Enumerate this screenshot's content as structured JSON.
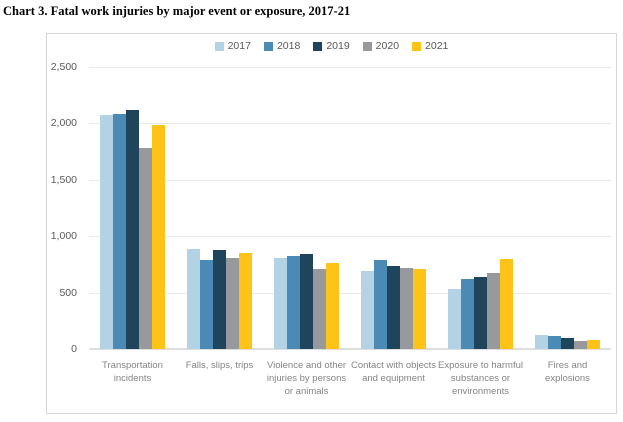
{
  "page_title": "Chart 3. Fatal work injuries by major event or exposure, 2017-21",
  "colors": {
    "s2017": "#b3d2e4",
    "s2018": "#4a8ab5",
    "s2019": "#1f455c",
    "s2020": "#98999c",
    "s2021": "#fdc317",
    "gridline": "#e9e9e9",
    "box_border": "#d6d6d6",
    "axis_text": "#595959",
    "category_text": "#848484"
  },
  "chart_data": {
    "type": "bar",
    "title": "Chart 3. Fatal work injuries by major event or exposure, 2017-21",
    "categories": [
      "Transportation incidents",
      "Falls, slips, trips",
      "Violence and other injuries by persons or animals",
      "Contact with objects and equipment",
      "Exposure to harmful substances or environments",
      "Fires and explosions"
    ],
    "series": [
      {
        "name": "2017",
        "color": "#b3d2e4",
        "values": [
          2077,
          887,
          807,
          695,
          531,
          123
        ]
      },
      {
        "name": "2018",
        "color": "#4a8ab5",
        "values": [
          2080,
          791,
          828,
          786,
          621,
          115
        ]
      },
      {
        "name": "2019",
        "color": "#1f455c",
        "values": [
          2122,
          880,
          841,
          732,
          642,
          99
        ]
      },
      {
        "name": "2020",
        "color": "#98999c",
        "values": [
          1778,
          805,
          705,
          716,
          672,
          72
        ]
      },
      {
        "name": "2021",
        "color": "#fdc317",
        "values": [
          1982,
          850,
          761,
          705,
          798,
          80
        ]
      }
    ],
    "xlabel": "",
    "ylabel": "",
    "ylim": [
      0,
      2500
    ],
    "yticks": [
      {
        "value": 0,
        "label": "0"
      },
      {
        "value": 500,
        "label": "500"
      },
      {
        "value": 1000,
        "label": "1,000"
      },
      {
        "value": 1500,
        "label": "1,500"
      },
      {
        "value": 2000,
        "label": "2,000"
      },
      {
        "value": 2500,
        "label": "2,500"
      }
    ],
    "grid": "horizontal",
    "legend_position": "top-center"
  }
}
